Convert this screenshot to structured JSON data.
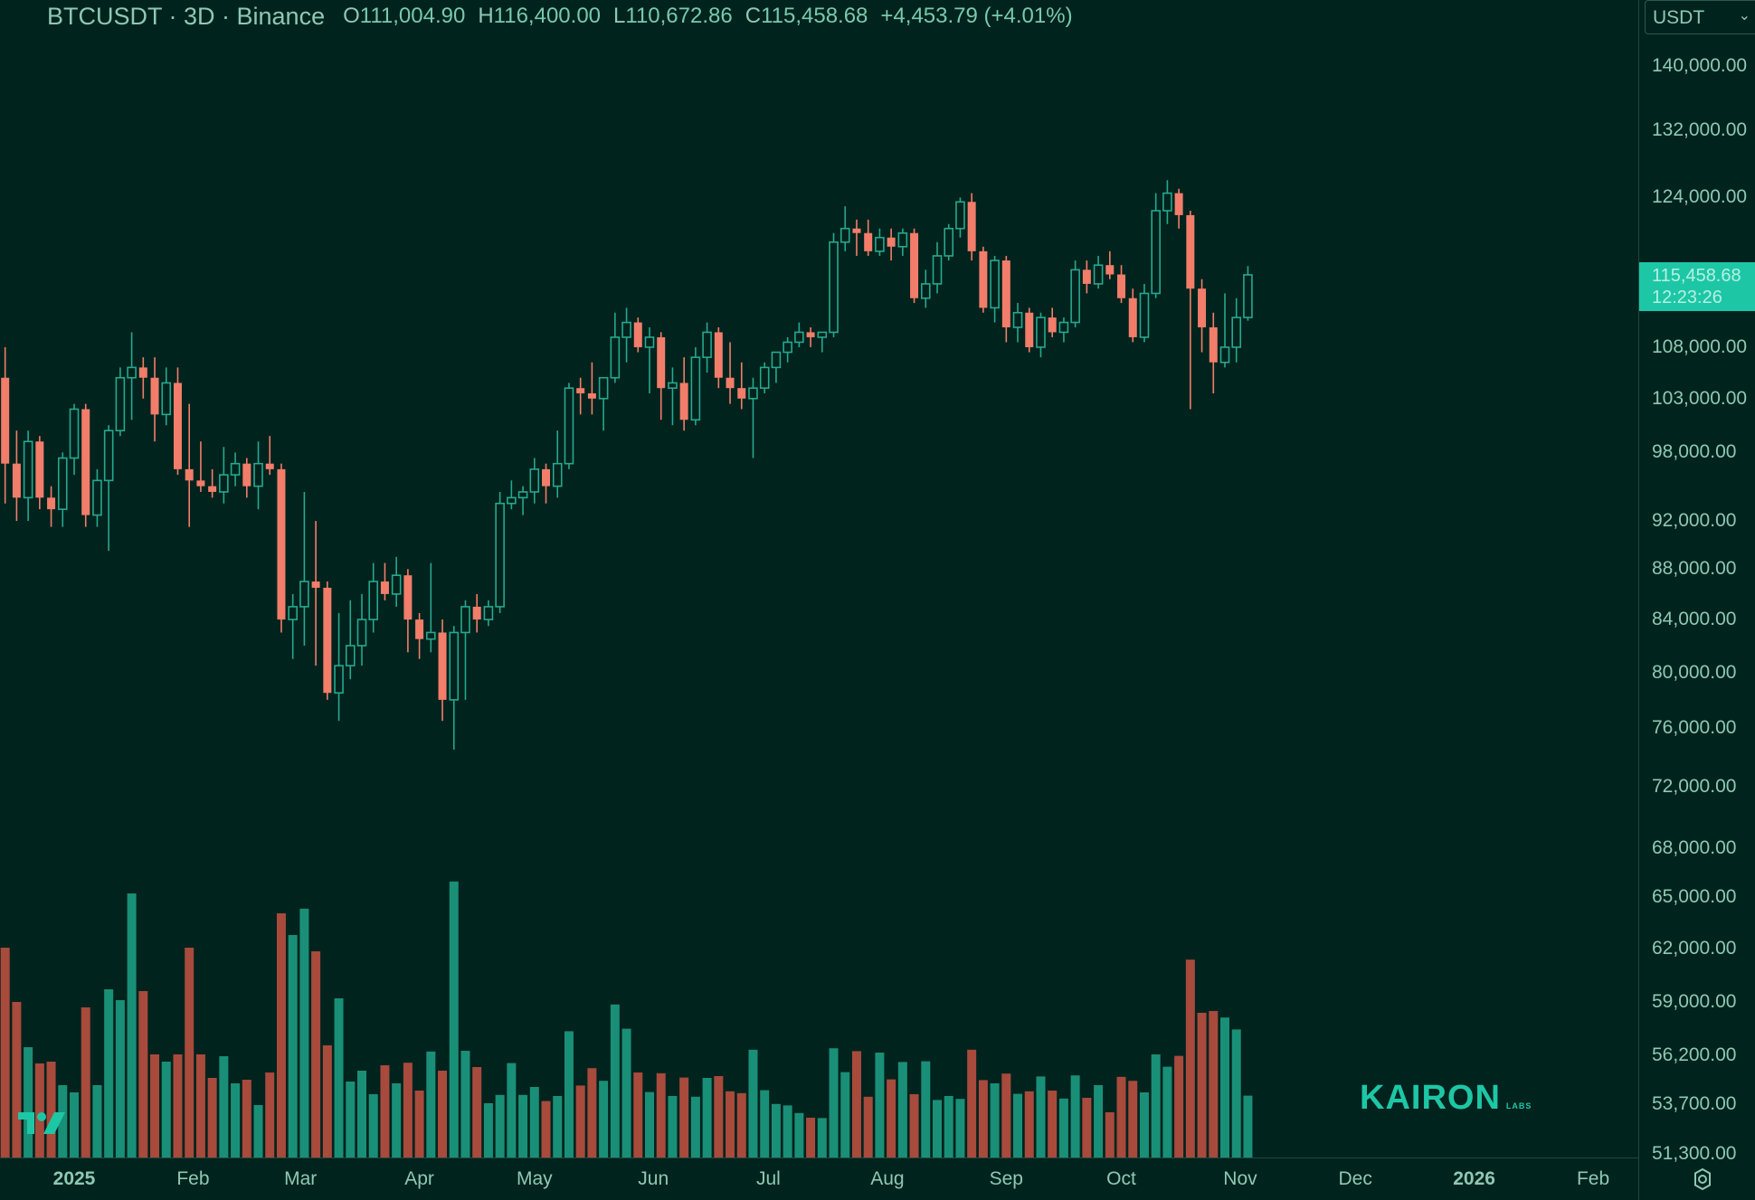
{
  "header": {
    "symbol": "BTCUSDT · 3D · Binance",
    "open_label": "O",
    "open": "111,004.90",
    "high_label": "H",
    "high": "116,400.00",
    "low_label": "L",
    "low": "110,672.86",
    "close_label": "C",
    "close": "115,458.68",
    "change": "+4,453.79 (+4.01%)"
  },
  "price_scale": {
    "currency": "USDT",
    "current_price": "115,458.68",
    "countdown": "12:23:26"
  },
  "watermark": {
    "brand": "KAIRON",
    "sub": "LABS"
  },
  "colors": {
    "up": "#26a88f",
    "down": "#f27d6a",
    "vol_up": "#1a8f77",
    "vol_down": "#a84a3c",
    "background": "#00231d",
    "accent": "#1dc7a6"
  },
  "icons": [
    "tradingview-logo-icon",
    "settings-gear-icon",
    "chevron-down-icon"
  ],
  "chart_data": {
    "type": "candlestick",
    "symbol": "BTCUSDT",
    "interval": "3D",
    "exchange": "Binance",
    "scale": "log",
    "y_ticks": [
      140000,
      132000,
      124000,
      108000,
      103000,
      98000,
      92000,
      88000,
      84000,
      80000,
      76000,
      72000,
      68000,
      65000,
      62000,
      59000,
      56200,
      53700,
      51300
    ],
    "y_tick_labels": [
      "140,000.00",
      "132,000.00",
      "124,000.00",
      "108,000.00",
      "103,000.00",
      "98,000.00",
      "92,000.00",
      "88,000.00",
      "84,000.00",
      "80,000.00",
      "76,000.00",
      "72,000.00",
      "68,000.00",
      "65,000.00",
      "62,000.00",
      "59,000.00",
      "56,200.00",
      "53,700.00",
      "51,300.00"
    ],
    "x_labels": [
      {
        "label": "2025",
        "date": "2025-01-01",
        "bold": true
      },
      {
        "label": "Feb",
        "date": "2025-02-01"
      },
      {
        "label": "Mar",
        "date": "2025-03-01"
      },
      {
        "label": "Apr",
        "date": "2025-04-01"
      },
      {
        "label": "May",
        "date": "2025-05-01"
      },
      {
        "label": "Jun",
        "date": "2025-06-01"
      },
      {
        "label": "Jul",
        "date": "2025-07-01"
      },
      {
        "label": "Aug",
        "date": "2025-08-01"
      },
      {
        "label": "Sep",
        "date": "2025-09-01"
      },
      {
        "label": "Oct",
        "date": "2025-10-01"
      },
      {
        "label": "Nov",
        "date": "2025-11-01"
      },
      {
        "label": "Dec",
        "date": "2025-12-01"
      },
      {
        "label": "2026",
        "date": "2026-01-01",
        "bold": true
      },
      {
        "label": "Feb",
        "date": "2026-02-01"
      }
    ],
    "candles": [
      {
        "d": "2024-12-11",
        "o": 99000,
        "h": 109000,
        "l": 96500,
        "c": 105000,
        "v": 370
      },
      {
        "d": "2024-12-14",
        "o": 105000,
        "h": 108000,
        "l": 93500,
        "c": 97000,
        "v": 580
      },
      {
        "d": "2024-12-17",
        "o": 97000,
        "h": 100000,
        "l": 92000,
        "c": 94000,
        "v": 430
      },
      {
        "d": "2024-12-20",
        "o": 94000,
        "h": 100000,
        "l": 92000,
        "c": 99000,
        "v": 305
      },
      {
        "d": "2024-12-23",
        "o": 99000,
        "h": 99500,
        "l": 93000,
        "c": 94000,
        "v": 260
      },
      {
        "d": "2024-12-26",
        "o": 94000,
        "h": 95000,
        "l": 91500,
        "c": 93000,
        "v": 265
      },
      {
        "d": "2024-12-29",
        "o": 93000,
        "h": 98000,
        "l": 91500,
        "c": 97500,
        "v": 200
      },
      {
        "d": "2025-01-01",
        "o": 97500,
        "h": 102500,
        "l": 96000,
        "c": 102000,
        "v": 180
      },
      {
        "d": "2025-01-04",
        "o": 102000,
        "h": 102500,
        "l": 91500,
        "c": 92500,
        "v": 415
      },
      {
        "d": "2025-01-07",
        "o": 92500,
        "h": 96500,
        "l": 91500,
        "c": 95500,
        "v": 200
      },
      {
        "d": "2025-01-10",
        "o": 95500,
        "h": 100500,
        "l": 89500,
        "c": 100000,
        "v": 465
      },
      {
        "d": "2025-01-13",
        "o": 100000,
        "h": 106000,
        "l": 99500,
        "c": 105000,
        "v": 435
      },
      {
        "d": "2025-01-16",
        "o": 105000,
        "h": 109500,
        "l": 101000,
        "c": 106000,
        "v": 730
      },
      {
        "d": "2025-01-19",
        "o": 106000,
        "h": 107000,
        "l": 103000,
        "c": 105000,
        "v": 460
      },
      {
        "d": "2025-01-22",
        "o": 105000,
        "h": 107000,
        "l": 99000,
        "c": 101500,
        "v": 285
      },
      {
        "d": "2025-01-25",
        "o": 101500,
        "h": 106000,
        "l": 100500,
        "c": 104500,
        "v": 265
      },
      {
        "d": "2025-01-28",
        "o": 104500,
        "h": 106000,
        "l": 96000,
        "c": 96500,
        "v": 285
      },
      {
        "d": "2025-01-31",
        "o": 96500,
        "h": 102500,
        "l": 91500,
        "c": 95500,
        "v": 580
      },
      {
        "d": "2025-02-03",
        "o": 95500,
        "h": 99000,
        "l": 94500,
        "c": 95000,
        "v": 285
      },
      {
        "d": "2025-02-06",
        "o": 95000,
        "h": 96500,
        "l": 94000,
        "c": 94500,
        "v": 220
      },
      {
        "d": "2025-02-09",
        "o": 94500,
        "h": 98500,
        "l": 93500,
        "c": 96000,
        "v": 280
      },
      {
        "d": "2025-02-12",
        "o": 96000,
        "h": 98000,
        "l": 95000,
        "c": 97000,
        "v": 205
      },
      {
        "d": "2025-02-15",
        "o": 97000,
        "h": 97500,
        "l": 94000,
        "c": 95000,
        "v": 215
      },
      {
        "d": "2025-02-18",
        "o": 95000,
        "h": 99000,
        "l": 93000,
        "c": 97000,
        "v": 145
      },
      {
        "d": "2025-02-21",
        "o": 97000,
        "h": 99500,
        "l": 96000,
        "c": 96500,
        "v": 235
      },
      {
        "d": "2025-02-24",
        "o": 96500,
        "h": 97000,
        "l": 83000,
        "c": 84000,
        "v": 675
      },
      {
        "d": "2025-02-27",
        "o": 84000,
        "h": 86000,
        "l": 81000,
        "c": 85000,
        "v": 615
      },
      {
        "d": "2025-03-02",
        "o": 85000,
        "h": 94500,
        "l": 82000,
        "c": 87000,
        "v": 688
      },
      {
        "d": "2025-03-05",
        "o": 87000,
        "h": 92000,
        "l": 80500,
        "c": 86500,
        "v": 570
      },
      {
        "d": "2025-03-08",
        "o": 86500,
        "h": 87000,
        "l": 78000,
        "c": 78500,
        "v": 310
      },
      {
        "d": "2025-03-11",
        "o": 78500,
        "h": 84500,
        "l": 76500,
        "c": 80500,
        "v": 440
      },
      {
        "d": "2025-03-14",
        "o": 80500,
        "h": 85500,
        "l": 79500,
        "c": 82000,
        "v": 210
      },
      {
        "d": "2025-03-17",
        "o": 82000,
        "h": 86000,
        "l": 80500,
        "c": 84000,
        "v": 240
      },
      {
        "d": "2025-03-20",
        "o": 84000,
        "h": 88500,
        "l": 83000,
        "c": 87000,
        "v": 175
      },
      {
        "d": "2025-03-23",
        "o": 87000,
        "h": 88500,
        "l": 85500,
        "c": 86000,
        "v": 255
      },
      {
        "d": "2025-03-26",
        "o": 86000,
        "h": 89000,
        "l": 85000,
        "c": 87500,
        "v": 205
      },
      {
        "d": "2025-03-29",
        "o": 87500,
        "h": 88000,
        "l": 81500,
        "c": 84000,
        "v": 262
      },
      {
        "d": "2025-04-01",
        "o": 84000,
        "h": 84500,
        "l": 81000,
        "c": 82500,
        "v": 185
      },
      {
        "d": "2025-04-04",
        "o": 82500,
        "h": 88500,
        "l": 81500,
        "c": 83000,
        "v": 293
      },
      {
        "d": "2025-04-07",
        "o": 83000,
        "h": 84000,
        "l": 76500,
        "c": 78000,
        "v": 240
      },
      {
        "d": "2025-04-10",
        "o": 78000,
        "h": 83500,
        "l": 74500,
        "c": 83000,
        "v": 763
      },
      {
        "d": "2025-04-13",
        "o": 83000,
        "h": 85500,
        "l": 78000,
        "c": 85000,
        "v": 295
      },
      {
        "d": "2025-04-16",
        "o": 85000,
        "h": 86000,
        "l": 83000,
        "c": 84000,
        "v": 250
      },
      {
        "d": "2025-04-19",
        "o": 84000,
        "h": 85500,
        "l": 83500,
        "c": 85000,
        "v": 150
      },
      {
        "d": "2025-04-22",
        "o": 85000,
        "h": 94500,
        "l": 84500,
        "c": 93500,
        "v": 173
      },
      {
        "d": "2025-04-25",
        "o": 93500,
        "h": 95500,
        "l": 93000,
        "c": 94000,
        "v": 261
      },
      {
        "d": "2025-04-28",
        "o": 94000,
        "h": 95000,
        "l": 92500,
        "c": 94500,
        "v": 173
      },
      {
        "d": "2025-05-01",
        "o": 94500,
        "h": 97500,
        "l": 93500,
        "c": 96500,
        "v": 195
      },
      {
        "d": "2025-05-04",
        "o": 96500,
        "h": 97000,
        "l": 93500,
        "c": 95000,
        "v": 156
      },
      {
        "d": "2025-05-07",
        "o": 95000,
        "h": 100000,
        "l": 94000,
        "c": 97000,
        "v": 170
      },
      {
        "d": "2025-05-10",
        "o": 97000,
        "h": 104500,
        "l": 96500,
        "c": 104000,
        "v": 349
      },
      {
        "d": "2025-05-13",
        "o": 104000,
        "h": 105000,
        "l": 101500,
        "c": 103500,
        "v": 199
      },
      {
        "d": "2025-05-16",
        "o": 103500,
        "h": 106500,
        "l": 101500,
        "c": 103000,
        "v": 247
      },
      {
        "d": "2025-05-19",
        "o": 103000,
        "h": 105000,
        "l": 100000,
        "c": 105000,
        "v": 212
      },
      {
        "d": "2025-05-22",
        "o": 105000,
        "h": 111500,
        "l": 104500,
        "c": 109000,
        "v": 423
      },
      {
        "d": "2025-05-25",
        "o": 109000,
        "h": 112000,
        "l": 106500,
        "c": 110500,
        "v": 356
      },
      {
        "d": "2025-05-28",
        "o": 110500,
        "h": 111000,
        "l": 107500,
        "c": 108000,
        "v": 235
      },
      {
        "d": "2025-05-31",
        "o": 108000,
        "h": 110000,
        "l": 103500,
        "c": 109000,
        "v": 181
      },
      {
        "d": "2025-06-03",
        "o": 109000,
        "h": 109500,
        "l": 101000,
        "c": 104000,
        "v": 233
      },
      {
        "d": "2025-06-06",
        "o": 104000,
        "h": 106000,
        "l": 100500,
        "c": 104500,
        "v": 170
      },
      {
        "d": "2025-06-09",
        "o": 104500,
        "h": 107000,
        "l": 100000,
        "c": 101000,
        "v": 221
      },
      {
        "d": "2025-06-12",
        "o": 101000,
        "h": 108000,
        "l": 100500,
        "c": 107000,
        "v": 168
      },
      {
        "d": "2025-06-15",
        "o": 107000,
        "h": 110500,
        "l": 105500,
        "c": 109500,
        "v": 220
      },
      {
        "d": "2025-06-18",
        "o": 109500,
        "h": 110000,
        "l": 104000,
        "c": 105000,
        "v": 225
      },
      {
        "d": "2025-06-21",
        "o": 105000,
        "h": 108500,
        "l": 102500,
        "c": 104000,
        "v": 183
      },
      {
        "d": "2025-06-24",
        "o": 104000,
        "h": 106500,
        "l": 102000,
        "c": 103000,
        "v": 178
      },
      {
        "d": "2025-06-27",
        "o": 103000,
        "h": 105000,
        "l": 97500,
        "c": 104000,
        "v": 298
      },
      {
        "d": "2025-06-30",
        "o": 104000,
        "h": 106500,
        "l": 103500,
        "c": 106000,
        "v": 186
      },
      {
        "d": "2025-07-03",
        "o": 106000,
        "h": 107000,
        "l": 104500,
        "c": 107500,
        "v": 148
      },
      {
        "d": "2025-07-06",
        "o": 107500,
        "h": 109000,
        "l": 106500,
        "c": 108500,
        "v": 144
      },
      {
        "d": "2025-07-09",
        "o": 108500,
        "h": 110500,
        "l": 108000,
        "c": 109500,
        "v": 123
      },
      {
        "d": "2025-07-12",
        "o": 109500,
        "h": 110000,
        "l": 108000,
        "c": 109000,
        "v": 110
      },
      {
        "d": "2025-07-15",
        "o": 109000,
        "h": 109500,
        "l": 107500,
        "c": 109500,
        "v": 109
      },
      {
        "d": "2025-07-18",
        "o": 109500,
        "h": 120000,
        "l": 109000,
        "c": 119000,
        "v": 302
      },
      {
        "d": "2025-07-21",
        "o": 119000,
        "h": 123000,
        "l": 118000,
        "c": 120500,
        "v": 236
      },
      {
        "d": "2025-07-24",
        "o": 120500,
        "h": 121500,
        "l": 117500,
        "c": 120000,
        "v": 294
      },
      {
        "d": "2025-07-27",
        "o": 120000,
        "h": 121500,
        "l": 117500,
        "c": 118000,
        "v": 168
      },
      {
        "d": "2025-07-30",
        "o": 118000,
        "h": 120500,
        "l": 117500,
        "c": 119500,
        "v": 290
      },
      {
        "d": "2025-08-02",
        "o": 119500,
        "h": 120500,
        "l": 117000,
        "c": 118500,
        "v": 216
      },
      {
        "d": "2025-08-05",
        "o": 118500,
        "h": 120500,
        "l": 117500,
        "c": 120000,
        "v": 264
      },
      {
        "d": "2025-08-08",
        "o": 120000,
        "h": 120500,
        "l": 112500,
        "c": 113000,
        "v": 175
      },
      {
        "d": "2025-08-11",
        "o": 113000,
        "h": 116000,
        "l": 112000,
        "c": 114500,
        "v": 266
      },
      {
        "d": "2025-08-14",
        "o": 114500,
        "h": 119000,
        "l": 113500,
        "c": 117500,
        "v": 159
      },
      {
        "d": "2025-08-17",
        "o": 117500,
        "h": 121000,
        "l": 117000,
        "c": 120500,
        "v": 170
      },
      {
        "d": "2025-08-20",
        "o": 120500,
        "h": 124000,
        "l": 119500,
        "c": 123500,
        "v": 162
      },
      {
        "d": "2025-08-23",
        "o": 123500,
        "h": 124500,
        "l": 117000,
        "c": 118000,
        "v": 298
      },
      {
        "d": "2025-08-26",
        "o": 118000,
        "h": 118500,
        "l": 111500,
        "c": 112000,
        "v": 214
      },
      {
        "d": "2025-08-29",
        "o": 112000,
        "h": 117500,
        "l": 110500,
        "c": 117000,
        "v": 205
      },
      {
        "d": "2025-09-01",
        "o": 117000,
        "h": 117500,
        "l": 108500,
        "c": 110000,
        "v": 232
      },
      {
        "d": "2025-09-04",
        "o": 110000,
        "h": 112500,
        "l": 108500,
        "c": 111500,
        "v": 176
      },
      {
        "d": "2025-09-07",
        "o": 111500,
        "h": 112000,
        "l": 107500,
        "c": 108000,
        "v": 183
      },
      {
        "d": "2025-09-10",
        "o": 108000,
        "h": 111500,
        "l": 107000,
        "c": 111000,
        "v": 224
      },
      {
        "d": "2025-09-13",
        "o": 111000,
        "h": 112000,
        "l": 109000,
        "c": 109500,
        "v": 185
      },
      {
        "d": "2025-09-16",
        "o": 109500,
        "h": 111000,
        "l": 108500,
        "c": 110500,
        "v": 163
      },
      {
        "d": "2025-09-19",
        "o": 110500,
        "h": 117000,
        "l": 110000,
        "c": 116000,
        "v": 227
      },
      {
        "d": "2025-09-22",
        "o": 116000,
        "h": 117000,
        "l": 113500,
        "c": 114500,
        "v": 165
      },
      {
        "d": "2025-09-25",
        "o": 114500,
        "h": 117500,
        "l": 114000,
        "c": 116500,
        "v": 200
      },
      {
        "d": "2025-09-28",
        "o": 116500,
        "h": 118000,
        "l": 115000,
        "c": 115500,
        "v": 125
      },
      {
        "d": "2025-10-01",
        "o": 115500,
        "h": 116500,
        "l": 112500,
        "c": 113000,
        "v": 223
      },
      {
        "d": "2025-10-04",
        "o": 113000,
        "h": 114000,
        "l": 108500,
        "c": 109000,
        "v": 212
      },
      {
        "d": "2025-10-07",
        "o": 109000,
        "h": 114500,
        "l": 108500,
        "c": 113500,
        "v": 180
      },
      {
        "d": "2025-10-10",
        "o": 113500,
        "h": 124500,
        "l": 113000,
        "c": 122500,
        "v": 285
      },
      {
        "d": "2025-10-13",
        "o": 122500,
        "h": 126000,
        "l": 121000,
        "c": 124500,
        "v": 251
      },
      {
        "d": "2025-10-16",
        "o": 124500,
        "h": 125000,
        "l": 120500,
        "c": 122000,
        "v": 281
      },
      {
        "d": "2025-10-19",
        "o": 122000,
        "h": 122500,
        "l": 102000,
        "c": 114000,
        "v": 547
      },
      {
        "d": "2025-10-22",
        "o": 114000,
        "h": 115000,
        "l": 107500,
        "c": 110000,
        "v": 400
      },
      {
        "d": "2025-10-25",
        "o": 110000,
        "h": 111500,
        "l": 103500,
        "c": 106500,
        "v": 405
      },
      {
        "d": "2025-10-28",
        "o": 106500,
        "h": 113500,
        "l": 106000,
        "c": 108000,
        "v": 387
      },
      {
        "d": "2025-10-31",
        "o": 108000,
        "h": 113000,
        "l": 106500,
        "c": 111000,
        "v": 354
      },
      {
        "d": "2025-11-03",
        "o": 111004.9,
        "h": 116400,
        "l": 110672.86,
        "c": 115458.68,
        "v": 171
      }
    ]
  }
}
